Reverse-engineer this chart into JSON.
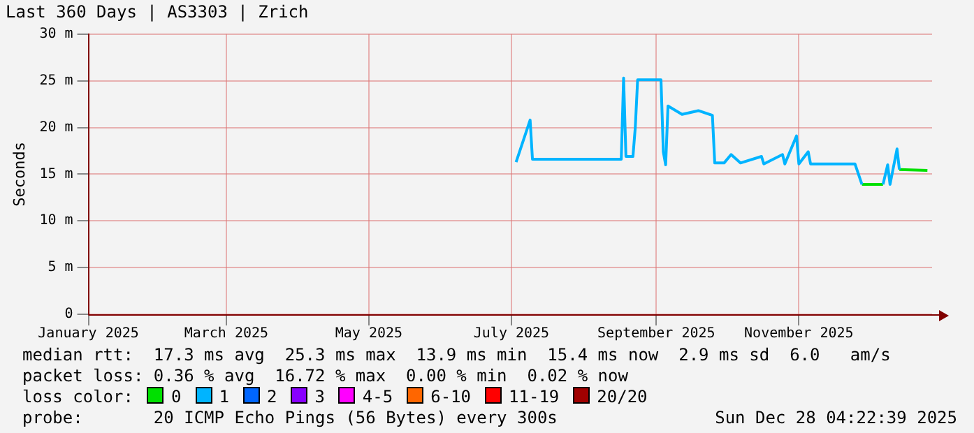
{
  "chart_data": {
    "type": "line",
    "title": "Last 360 Days | AS3303 | Zrich",
    "ylabel": "Seconds",
    "legend_title": "loss color:",
    "legend": "bottom",
    "grid": true,
    "marker": "none",
    "line_style": "solid",
    "xlim": [
      "2025-01-01",
      "2025-12-28"
    ],
    "xticks": [
      {
        "value": "2025-01-01",
        "label": "January 2025"
      },
      {
        "value": "2025-03-01",
        "label": "March 2025"
      },
      {
        "value": "2025-05-01",
        "label": "May 2025"
      },
      {
        "value": "2025-07-01",
        "label": "July 2025"
      },
      {
        "value": "2025-09-01",
        "label": "September 2025"
      },
      {
        "value": "2025-11-01",
        "label": "November 2025"
      }
    ],
    "ylim": [
      0,
      30
    ],
    "yticks": [
      0,
      {
        "value": 5,
        "label": "5 m"
      },
      {
        "value": 10,
        "label": "10 m"
      },
      {
        "value": 15,
        "label": "15 m"
      },
      {
        "value": 20,
        "label": "20 m"
      },
      {
        "value": 25,
        "label": "25 m"
      },
      {
        "value": 30,
        "label": "30 m"
      }
    ],
    "series": [
      {
        "name": "1",
        "color": "#00b4ff",
        "x": [
          "2025-07-03",
          "2025-07-09",
          "2025-07-10",
          "2025-08-17",
          "2025-08-18",
          "2025-08-19",
          "2025-08-22",
          "2025-08-23",
          "2025-08-24",
          "2025-09-03",
          "2025-09-04",
          "2025-09-05",
          "2025-09-06",
          "2025-09-12",
          "2025-09-19",
          "2025-09-25",
          "2025-09-26",
          "2025-09-30",
          "2025-10-03",
          "2025-10-07",
          "2025-10-16",
          "2025-10-17",
          "2025-10-25",
          "2025-10-26",
          "2025-10-31",
          "2025-11-01",
          "2025-11-05",
          "2025-11-06",
          "2025-11-25",
          "2025-11-28",
          "2025-12-01",
          "2025-12-07",
          "2025-12-09",
          "2025-12-10",
          "2025-12-13",
          "2025-12-14"
        ],
        "values": [
          16.3,
          20.8,
          16.6,
          16.6,
          25.3,
          16.9,
          16.9,
          20.0,
          25.1,
          25.1,
          17.4,
          16.0,
          22.3,
          21.4,
          21.8,
          21.3,
          16.2,
          16.2,
          17.1,
          16.2,
          16.9,
          16.1,
          17.1,
          16.1,
          19.1,
          16.1,
          17.4,
          16.1,
          16.1,
          13.9,
          null,
          13.9,
          16.0,
          13.9,
          17.7,
          15.5
        ]
      },
      {
        "name": "0",
        "color": "#00e000",
        "x": [
          "2025-11-28",
          "2025-12-07",
          "2025-12-10",
          "2025-12-14",
          "2025-12-26"
        ],
        "values": [
          13.9,
          13.9,
          null,
          15.5,
          15.4
        ]
      }
    ],
    "annotations": [
      "median rtt:  17.3 ms avg  25.3 ms max  13.9 ms min  15.4 ms now  2.9 ms sd  6.0   am/s",
      "packet loss: 0.36 % avg  16.72 % max  0.00 % min  0.02 % now",
      "2",
      "3",
      "4-5",
      "6-10",
      "11-19",
      "20/20",
      "probe:       20 ICMP Echo Pings (56 Bytes) every 300s",
      "Sun Dec 28 04:22:39 2025"
    ]
  }
}
